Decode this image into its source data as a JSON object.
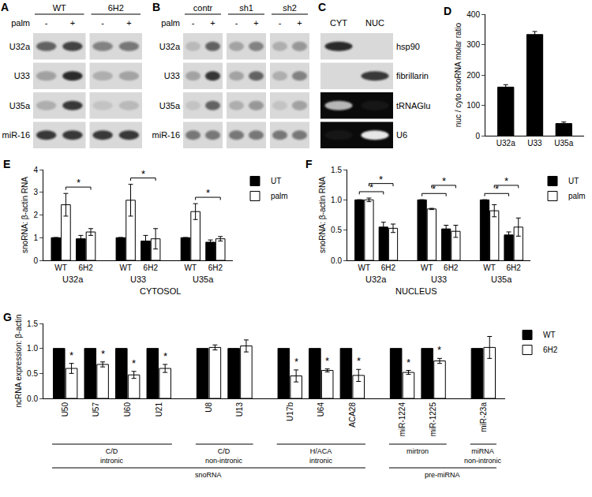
{
  "chart_data": [
    {
      "title": "D",
      "type": "bar",
      "categories": [
        "U32a",
        "U33",
        "U35a"
      ],
      "values": [
        160,
        333,
        40
      ],
      "errors": [
        8,
        10,
        5
      ],
      "color": "#000000",
      "ylabel": "nuc / cyto snoRNA molar ratio",
      "ylim": [
        0,
        400
      ],
      "yticks": [
        0,
        100,
        200,
        300,
        400
      ]
    },
    {
      "title": "E",
      "type": "bar",
      "categories": [
        [
          "U32a",
          "WT"
        ],
        [
          "U32a",
          "6H2"
        ],
        [
          "U33",
          "WT"
        ],
        [
          "U33",
          "6H2"
        ],
        [
          "U35a",
          "WT"
        ],
        [
          "U35a",
          "6H2"
        ]
      ],
      "series": [
        {
          "name": "UT",
          "color": "#000000",
          "values": [
            1,
            0.95,
            1,
            0.85,
            1,
            0.8
          ],
          "errors": [
            null,
            0.15,
            null,
            0.25,
            null,
            0.1
          ]
        },
        {
          "name": "palm",
          "color": "#ffffff",
          "values": [
            2.45,
            1.25,
            2.65,
            0.95,
            2.15,
            0.95
          ],
          "errors": [
            0.5,
            0.15,
            0.7,
            0.45,
            0.35,
            0.1
          ]
        }
      ],
      "xlabel": "CYTOSOL",
      "ylabel": "snoRNA: β-actin RNA",
      "ylim": [
        0,
        4
      ],
      "yticks": [
        0,
        1,
        2,
        3,
        4
      ],
      "legend": "right",
      "annotations": [
        {
          "text": "*",
          "group": "U32a",
          "series": "palm",
          "from": "WT",
          "to": "6H2"
        },
        {
          "text": "*",
          "group": "U33",
          "series": "palm",
          "from": "WT",
          "to": "6H2"
        },
        {
          "text": "*",
          "group": "U35a",
          "series": "palm",
          "from": "WT",
          "to": "6H2"
        }
      ]
    },
    {
      "title": "F",
      "type": "bar",
      "categories": [
        [
          "U32a",
          "WT"
        ],
        [
          "U32a",
          "6H2"
        ],
        [
          "U33",
          "WT"
        ],
        [
          "U33",
          "6H2"
        ],
        [
          "U35a",
          "WT"
        ],
        [
          "U35a",
          "6H2"
        ]
      ],
      "series": [
        {
          "name": "UT",
          "color": "#000000",
          "values": [
            1,
            0.55,
            1,
            0.52,
            1,
            0.42
          ],
          "errors": [
            null,
            0.08,
            null,
            0.06,
            null,
            0.05
          ]
        },
        {
          "name": "palm",
          "color": "#ffffff",
          "values": [
            1,
            0.53,
            0.85,
            0.48,
            0.82,
            0.55
          ],
          "errors": [
            0.03,
            0.07,
            0.01,
            0.1,
            0.1,
            0.15
          ]
        }
      ],
      "xlabel": "NUCLEUS",
      "ylabel": "snoRNA: β-actin RNA",
      "ylim": [
        0,
        1.5
      ],
      "yticks": [
        {
          "value": 0,
          "label": "0.0"
        },
        0.5,
        {
          "value": 1,
          "label": "1.0"
        },
        1.5
      ],
      "legend": "right",
      "annotations": [
        {
          "text": "*",
          "group": "U32a",
          "series": "UT",
          "from": "WT",
          "to": "6H2"
        },
        {
          "text": "*",
          "group": "U32a",
          "series": "palm",
          "from": "WT",
          "to": "6H2"
        },
        {
          "text": "*",
          "group": "U33",
          "series": "UT",
          "from": "WT",
          "to": "6H2"
        },
        {
          "text": "*",
          "group": "U33",
          "series": "palm",
          "from": "WT",
          "to": "6H2"
        },
        {
          "text": "*",
          "group": "U35a",
          "series": "UT",
          "from": "WT",
          "to": "6H2"
        },
        {
          "text": "*",
          "group": "U35a",
          "series": "palm",
          "from": "WT",
          "to": "6H2"
        }
      ]
    },
    {
      "title": "G",
      "type": "bar",
      "categories": [
        "U50",
        "U57",
        "U60",
        "U21",
        "U8",
        "U13",
        "U17b",
        "U64",
        "ACA28",
        "miR-1224",
        "miR-1225",
        "miR-23a"
      ],
      "series": [
        {
          "name": "WT",
          "color": "#000000",
          "values": [
            1,
            1,
            1,
            1,
            1,
            1,
            1,
            1,
            1,
            1,
            1,
            1
          ]
        },
        {
          "name": "6H2",
          "color": "#ffffff",
          "values": [
            0.6,
            0.68,
            0.47,
            0.6,
            1.02,
            1.05,
            0.45,
            0.56,
            0.46,
            0.52,
            0.75,
            1.02
          ],
          "errors": [
            0.1,
            0.05,
            0.07,
            0.08,
            0.05,
            0.12,
            0.12,
            0.03,
            0.12,
            0.04,
            0.05,
            0.22
          ]
        }
      ],
      "ylabel": "ncRNA expression: β-actin",
      "ylim": [
        0,
        1.5
      ],
      "yticks": [
        {
          "value": 0,
          "label": "0.0"
        },
        0.5,
        {
          "value": 1,
          "label": "1.0"
        },
        1.5
      ],
      "legend": "right",
      "groups": [
        {
          "label": [
            "C/D",
            "intronic"
          ],
          "categories": [
            "U50",
            "U57",
            "U60",
            "U21"
          ]
        },
        {
          "label": [
            "C/D",
            "non-intronic"
          ],
          "categories": [
            "U8",
            "U13"
          ]
        },
        {
          "label": [
            "H/ACA",
            "intronic"
          ],
          "categories": [
            "U17b",
            "U64",
            "ACA28"
          ]
        },
        {
          "label": [
            "mirtron"
          ],
          "categories": [
            "miR-1224",
            "miR-1225"
          ]
        },
        {
          "label": [
            "miRNA",
            "non-intronic"
          ],
          "categories": [
            "miR-23a"
          ]
        }
      ],
      "supergroups": [
        {
          "label": [
            "snoRNA"
          ],
          "categories": [
            "U50",
            "U57",
            "U60",
            "U21",
            "U8",
            "U13",
            "U17b",
            "U64",
            "ACA28"
          ]
        },
        {
          "label": [
            "pre-miRNA"
          ],
          "categories": [
            "miR-1224",
            "miR-1225",
            "miR-23a"
          ]
        }
      ],
      "annotations": [
        {
          "text": "*",
          "category": "U50",
          "series": "6H2"
        },
        {
          "text": "*",
          "category": "U57",
          "series": "6H2"
        },
        {
          "text": "*",
          "category": "U60",
          "series": "6H2"
        },
        {
          "text": "*",
          "category": "U21",
          "series": "6H2"
        },
        {
          "text": "*",
          "category": "U17b",
          "series": "6H2"
        },
        {
          "text": "*",
          "category": "U64",
          "series": "6H2"
        },
        {
          "text": "*",
          "category": "ACA28",
          "series": "6H2"
        },
        {
          "text": "*",
          "category": "miR-1224",
          "series": "6H2"
        },
        {
          "text": "*",
          "category": "miR-1225",
          "series": "6H2"
        }
      ]
    }
  ],
  "blots": [
    {
      "title": "A",
      "lane_header": "palm",
      "groups": [
        {
          "label": "WT",
          "lanes": [
            "-",
            "+"
          ]
        },
        {
          "label": "6H2",
          "lanes": [
            "-",
            "+"
          ]
        }
      ],
      "rows": [
        {
          "label": "U32a",
          "intensity": [
            0.6,
            0.75,
            0.45,
            0.5
          ]
        },
        {
          "label": "U33",
          "intensity": [
            0.3,
            0.9,
            0.2,
            0.25
          ]
        },
        {
          "label": "U35a",
          "intensity": [
            0.2,
            0.8,
            0.1,
            0.15
          ]
        },
        {
          "label": "miR-16",
          "intensity": [
            0.8,
            0.8,
            0.8,
            0.8
          ]
        }
      ]
    },
    {
      "title": "B",
      "lane_header": "palm",
      "groups": [
        {
          "label": "contr",
          "lanes": [
            "-",
            "+"
          ]
        },
        {
          "label": "sh1",
          "lanes": [
            "-",
            "+"
          ]
        },
        {
          "label": "sh2",
          "lanes": [
            "-",
            "+"
          ]
        }
      ],
      "rows": [
        {
          "label": "U32a",
          "intensity": [
            0.15,
            0.6,
            0.25,
            0.45,
            0.2,
            0.35
          ]
        },
        {
          "label": "U33",
          "intensity": [
            0.25,
            0.85,
            0.25,
            0.6,
            0.2,
            0.45
          ]
        },
        {
          "label": "U35a",
          "intensity": [
            0.1,
            0.6,
            0.2,
            0.35,
            0.1,
            0.3
          ]
        },
        {
          "label": "miR-16",
          "intensity": [
            0.5,
            0.5,
            0.5,
            0.5,
            0.5,
            0.5
          ]
        }
      ]
    },
    {
      "title": "C",
      "columns": [
        "CYT",
        "NUC"
      ],
      "rows": [
        {
          "label": "hsp90",
          "intensity": [
            0.9,
            0
          ]
        },
        {
          "label": "fibrillarin",
          "intensity": [
            0,
            0.8
          ]
        },
        {
          "label": "tRNAGlu",
          "type": "gel",
          "intensity": [
            0.7,
            0.05
          ]
        },
        {
          "label": "U6",
          "type": "gel",
          "intensity": [
            0.05,
            0.9
          ]
        }
      ]
    }
  ]
}
